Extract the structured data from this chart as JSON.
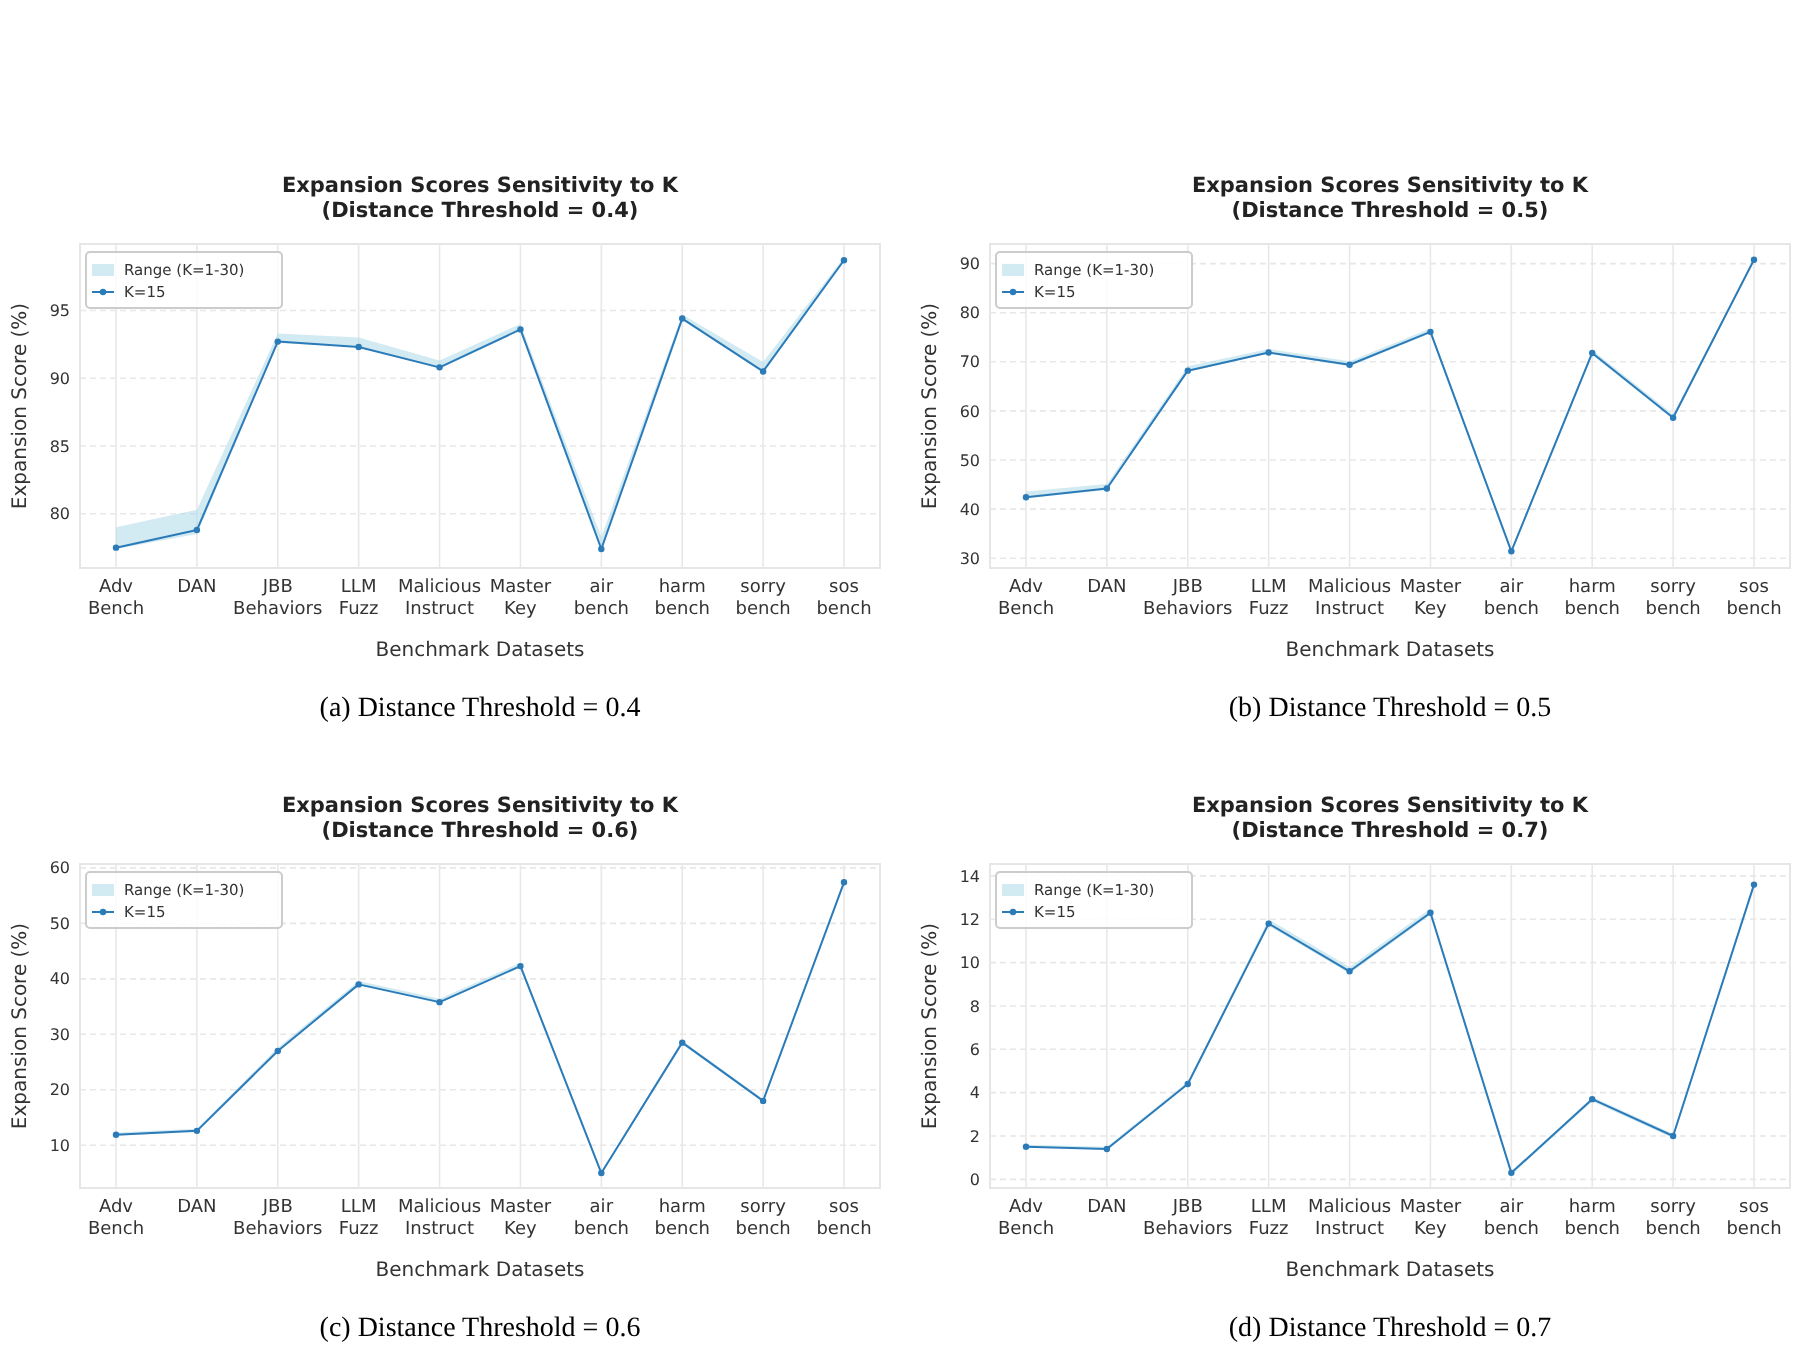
{
  "chart_data": [
    {
      "type": "line",
      "title": "Expansion Scores Sensitivity to K\n(Distance Threshold = 0.4)",
      "xlabel": "Benchmark Datasets",
      "ylabel": "Expansion Score (%)",
      "categories": [
        "Adv\nBench",
        "DAN",
        "JBB\nBehaviors",
        "LLM\nFuzz",
        "Malicious\nInstruct",
        "Master\nKey",
        "air\nbench",
        "harm\nbench",
        "sorry\nbench",
        "sos\nbench"
      ],
      "ylim": [
        76,
        99.9
      ],
      "yticks": [
        80,
        85,
        90,
        95
      ],
      "grid": true,
      "legend": "top left",
      "marker": "circle",
      "line_style": "solid",
      "annotations": [
        "Range (K=1-30)",
        "(a) Distance Threshold = 0.4"
      ],
      "series": [
        {
          "name": "K=15",
          "color": "#2b7bb9",
          "values": [
            77.5,
            78.8,
            92.7,
            92.3,
            90.8,
            93.6,
            77.4,
            94.4,
            90.5,
            98.7
          ],
          "lower": [
            77.4,
            78.5,
            92.6,
            92.3,
            90.7,
            93.5,
            77.3,
            94.3,
            90.4,
            98.6
          ],
          "upper": [
            79.0,
            80.3,
            93.3,
            93.0,
            91.3,
            94.0,
            78.3,
            94.7,
            91.2,
            98.9
          ]
        }
      ]
    },
    {
      "type": "line",
      "title": "Expansion Scores Sensitivity to K\n(Distance Threshold = 0.5)",
      "xlabel": "Benchmark Datasets",
      "ylabel": "Expansion Score (%)",
      "categories": [
        "Adv\nBench",
        "DAN",
        "JBB\nBehaviors",
        "LLM\nFuzz",
        "Malicious\nInstruct",
        "Master\nKey",
        "air\nbench",
        "harm\nbench",
        "sorry\nbench",
        "sos\nbench"
      ],
      "ylim": [
        28,
        94
      ],
      "yticks": [
        30,
        40,
        50,
        60,
        70,
        80,
        90
      ],
      "grid": true,
      "legend": "top left",
      "marker": "circle",
      "line_style": "solid",
      "annotations": [
        "Range (K=1-30)",
        "(b) Distance Threshold = 0.5"
      ],
      "series": [
        {
          "name": "K=15",
          "color": "#2b7bb9",
          "values": [
            42.4,
            44.2,
            68.2,
            71.9,
            69.4,
            76.1,
            31.4,
            71.8,
            58.6,
            90.8
          ],
          "lower": [
            42.2,
            43.9,
            68.0,
            71.7,
            69.1,
            75.8,
            31.1,
            71.4,
            58.3,
            90.6
          ],
          "upper": [
            43.6,
            45.1,
            69.1,
            72.6,
            70.1,
            76.8,
            31.7,
            72.4,
            59.3,
            91.0
          ]
        }
      ]
    },
    {
      "type": "line",
      "title": "Expansion Scores Sensitivity to K\n(Distance Threshold = 0.6)",
      "xlabel": "Benchmark Datasets",
      "ylabel": "Expansion Score (%)",
      "categories": [
        "Adv\nBench",
        "DAN",
        "JBB\nBehaviors",
        "LLM\nFuzz",
        "Malicious\nInstruct",
        "Master\nKey",
        "air\nbench",
        "harm\nbench",
        "sorry\nbench",
        "sos\nbench"
      ],
      "ylim": [
        2.3,
        60.7
      ],
      "yticks": [
        10,
        20,
        30,
        40,
        50,
        60
      ],
      "grid": true,
      "legend": "top left",
      "marker": "circle",
      "line_style": "solid",
      "annotations": [
        "Range (K=1-30)",
        "(c) Distance Threshold = 0.6"
      ],
      "series": [
        {
          "name": "K=15",
          "color": "#2b7bb9",
          "values": [
            11.9,
            12.6,
            27.0,
            39.0,
            35.8,
            42.3,
            5.0,
            28.5,
            18.0,
            57.4
          ],
          "lower": [
            11.7,
            12.4,
            26.8,
            38.8,
            35.6,
            42.1,
            4.8,
            28.3,
            17.8,
            57.2
          ],
          "upper": [
            12.3,
            13.0,
            27.6,
            39.6,
            36.4,
            42.9,
            5.2,
            28.9,
            18.3,
            57.6
          ]
        }
      ]
    },
    {
      "type": "line",
      "title": "Expansion Scores Sensitivity to K\n(Distance Threshold = 0.7)",
      "xlabel": "Benchmark Datasets",
      "ylabel": "Expansion Score (%)",
      "categories": [
        "Adv\nBench",
        "DAN",
        "JBB\nBehaviors",
        "LLM\nFuzz",
        "Malicious\nInstruct",
        "Master\nKey",
        "air\nbench",
        "harm\nbench",
        "sorry\nbench",
        "sos\nbench"
      ],
      "ylim": [
        -0.4,
        14.55
      ],
      "yticks": [
        0,
        2,
        4,
        6,
        8,
        10,
        12,
        14
      ],
      "grid": true,
      "legend": "top left",
      "marker": "circle",
      "line_style": "solid",
      "annotations": [
        "Range (K=1-30)",
        "(d) Distance Threshold = 0.7"
      ],
      "series": [
        {
          "name": "K=15",
          "color": "#2b7bb9",
          "values": [
            1.5,
            1.4,
            4.4,
            11.8,
            9.6,
            12.3,
            0.3,
            3.7,
            2.0,
            13.6
          ],
          "lower": [
            1.5,
            1.4,
            4.4,
            11.7,
            9.5,
            12.2,
            0.2,
            3.6,
            1.9,
            13.6
          ],
          "upper": [
            1.6,
            1.5,
            4.5,
            12.0,
            9.8,
            12.5,
            0.3,
            3.8,
            2.1,
            13.7
          ]
        }
      ]
    }
  ]
}
